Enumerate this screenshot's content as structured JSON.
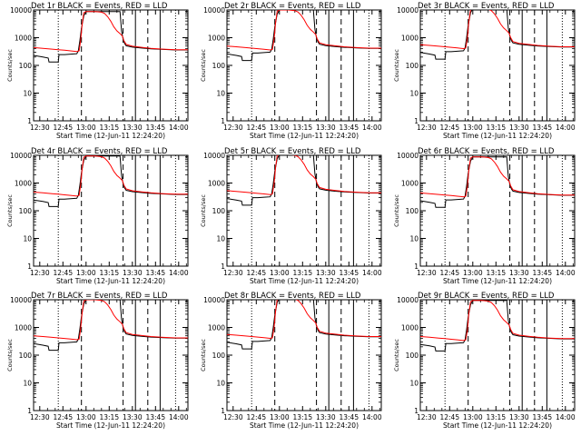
{
  "chart_data": {
    "type": "line",
    "layout": "3x3 grid of panels",
    "x_tick_labels": [
      "12:30",
      "12:45",
      "13:00",
      "13:15",
      "13:30",
      "13:45",
      "14:00"
    ],
    "x_ticks_minutes_after_1230": [
      0,
      15,
      30,
      45,
      60,
      75,
      90
    ],
    "xlim_minutes_after_1230": [
      -4,
      96
    ],
    "xlabel": "Start Time (12-Jun-11 12:24:20)",
    "ylabel": "Counts/sec",
    "yscale": "log",
    "ylim": [
      1,
      10000
    ],
    "y_tick_labels": [
      "1",
      "10",
      "100",
      "1000",
      "10000"
    ],
    "y_tick_values": [
      1,
      10,
      100,
      1000,
      10000
    ],
    "series_colors": {
      "events": "#000000",
      "lld": "#ff0000"
    },
    "markers": {
      "dotted_minutes": [
        12,
        88
      ],
      "dashed_minutes": [
        27,
        54,
        70
      ],
      "solid_minutes": [
        62,
        78
      ]
    },
    "panels": [
      {
        "title": "Det 1r BLACK = Events, RED = LLD"
      },
      {
        "title": "Det 2r BLACK = Events, RED = LLD"
      },
      {
        "title": "Det 3r BLACK = Events, RED = LLD"
      },
      {
        "title": "Det 4r BLACK = Events, RED = LLD"
      },
      {
        "title": "Det 5r BLACK = Events, RED = LLD"
      },
      {
        "title": "Det 6r BLACK = Events, RED = LLD"
      },
      {
        "title": "Det 7r BLACK = Events, RED = LLD"
      },
      {
        "title": "Det 8r BLACK = Events, RED = LLD"
      },
      {
        "title": "Det 9r BLACK = Events, RED = LLD"
      }
    ],
    "lld_series_points": [
      [
        -4,
        500
      ],
      [
        2,
        470
      ],
      [
        8,
        440
      ],
      [
        12,
        420
      ],
      [
        16,
        400
      ],
      [
        20,
        380
      ],
      [
        24,
        360
      ],
      [
        25.5,
        380
      ],
      [
        26.5,
        900
      ],
      [
        27.5,
        3500
      ],
      [
        28.5,
        9000
      ],
      [
        30,
        10000
      ],
      [
        36,
        10000
      ],
      [
        40,
        9500
      ],
      [
        42,
        8500
      ],
      [
        44,
        6500
      ],
      [
        46,
        4500
      ],
      [
        48,
        2800
      ],
      [
        50,
        2000
      ],
      [
        52,
        1600
      ],
      [
        53.5,
        1300
      ],
      [
        54.5,
        900
      ],
      [
        56,
        650
      ],
      [
        60,
        560
      ],
      [
        66,
        510
      ],
      [
        72,
        470
      ],
      [
        80,
        440
      ],
      [
        88,
        420
      ],
      [
        96,
        420
      ]
    ],
    "events_series_points": [
      [
        -4,
        260
      ],
      [
        2,
        230
      ],
      [
        5.5,
        210
      ],
      [
        6,
        150
      ],
      [
        12,
        150
      ],
      [
        12.5,
        280
      ],
      [
        16,
        280
      ],
      [
        20,
        290
      ],
      [
        24,
        300
      ],
      [
        25,
        380
      ],
      [
        26,
        900
      ],
      [
        27,
        2500
      ],
      [
        28.5,
        7000
      ],
      [
        30,
        10000
      ],
      [
        52,
        10000
      ],
      [
        53,
        2000
      ],
      [
        54,
        1000
      ],
      [
        55,
        700
      ],
      [
        56,
        580
      ],
      [
        60,
        520
      ],
      [
        66,
        480
      ],
      [
        72,
        450
      ],
      [
        80,
        430
      ],
      [
        88,
        410
      ],
      [
        96,
        410
      ]
    ]
  }
}
